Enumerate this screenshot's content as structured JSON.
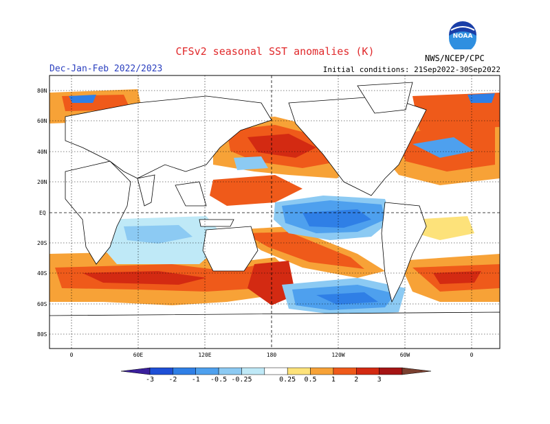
{
  "header": {
    "title": "CFSv2 seasonal SST anomalies (K)",
    "period": "Dec-Jan-Feb 2022/2023",
    "initial_conditions": "Initial conditions: 21Sep2022-30Sep2022",
    "agency": "NWS/NCEP/CPC",
    "logo_text": "NOAA"
  },
  "map": {
    "lat_ticks": [
      "80N",
      "60N",
      "40N",
      "20N",
      "EQ",
      "20S",
      "40S",
      "60S",
      "80S"
    ],
    "lon_ticks": [
      "0",
      "60E",
      "120E",
      "180",
      "120W",
      "60W",
      "0"
    ]
  },
  "colorbar": {
    "levels": [
      "-3",
      "-2",
      "-1",
      "-0.5",
      "-0.25",
      "0.25",
      "0.5",
      "1",
      "2",
      "3"
    ],
    "colors": [
      "#3a1f9c",
      "#1e4fd6",
      "#2f7fe6",
      "#4ea0ee",
      "#8ccaf3",
      "#bfe9f7",
      "#ffffff",
      "#fde27a",
      "#f7a237",
      "#ef5a1a",
      "#d32a12",
      "#a51414",
      "#7a4030"
    ]
  },
  "colors": {
    "title": "#e0282a",
    "period": "#2a3fbf",
    "frame": "#000000"
  }
}
